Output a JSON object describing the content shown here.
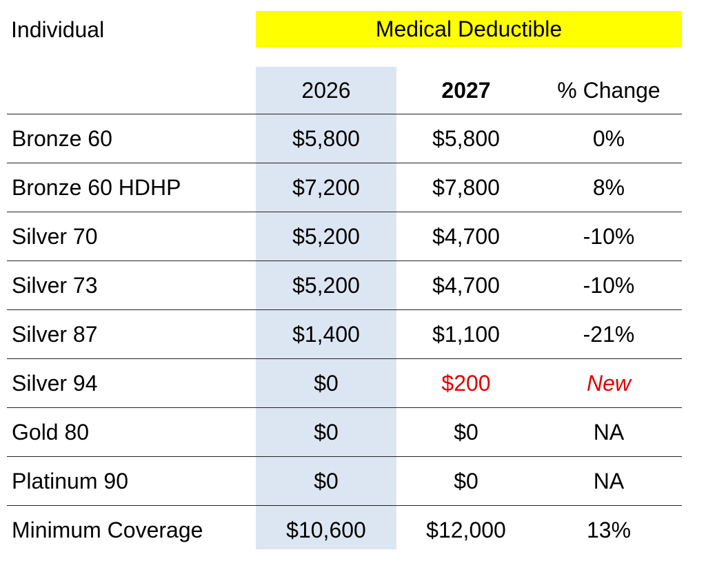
{
  "header": {
    "title": "Individual",
    "banner": "Medical Deductible",
    "banner_color": "#FFFF00"
  },
  "columns": {
    "plan": "",
    "year_2026": "2026",
    "year_2027": "2027",
    "change": "% Change"
  },
  "highlight_color": "#DCE6F2",
  "accent_red": "#E00000",
  "rows": [
    {
      "plan": "Bronze 60",
      "y2026": "$5,800",
      "y2027": "$5,800",
      "change": "0%"
    },
    {
      "plan": "Bronze 60 HDHP",
      "y2026": "$7,200",
      "y2027": "$7,800",
      "change": "8%"
    },
    {
      "plan": "Silver 70",
      "y2026": "$5,200",
      "y2027": "$4,700",
      "change": "-10%"
    },
    {
      "plan": "Silver 73",
      "y2026": "$5,200",
      "y2027": "$4,700",
      "change": "-10%"
    },
    {
      "plan": "Silver 87",
      "y2026": "$1,400",
      "y2027": "$1,100",
      "change": "-21%"
    },
    {
      "plan": "Silver 94",
      "y2026": "$0",
      "y2027": "$200",
      "change": "New"
    },
    {
      "plan": "Gold 80",
      "y2026": "$0",
      "y2027": "$0",
      "change": "NA"
    },
    {
      "plan": "Platinum 90",
      "y2026": "$0",
      "y2027": "$0",
      "change": "NA"
    },
    {
      "plan": "Minimum Coverage",
      "y2026": "$10,600",
      "y2027": "$12,000",
      "change": "13%"
    }
  ]
}
